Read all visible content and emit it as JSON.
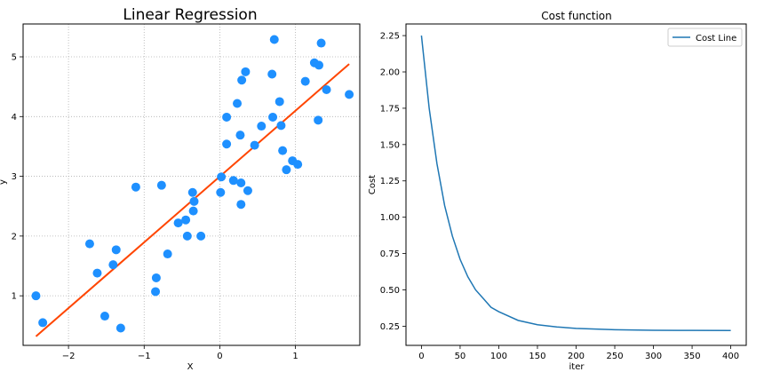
{
  "chart_data": [
    {
      "type": "scatter",
      "title": "Linear Regression",
      "xlabel": "X",
      "ylabel": "y",
      "xlim": [
        -2.6,
        1.85
      ],
      "ylim": [
        0.17,
        5.55
      ],
      "xticks": [
        -2,
        -1,
        0,
        1
      ],
      "yticks": [
        1,
        2,
        3,
        4,
        5
      ],
      "grid": true,
      "colors": {
        "points": "#1e90ff",
        "line": "#ff4500"
      },
      "points": [
        [
          -2.43,
          1.0
        ],
        [
          -2.34,
          0.55
        ],
        [
          -1.72,
          1.87
        ],
        [
          -1.62,
          1.38
        ],
        [
          -1.52,
          0.66
        ],
        [
          -1.41,
          1.52
        ],
        [
          -1.37,
          1.77
        ],
        [
          -1.31,
          0.46
        ],
        [
          -1.11,
          2.82
        ],
        [
          -0.85,
          1.07
        ],
        [
          -0.84,
          1.3
        ],
        [
          -0.77,
          2.85
        ],
        [
          -0.69,
          1.7
        ],
        [
          -0.55,
          2.22
        ],
        [
          -0.45,
          2.27
        ],
        [
          -0.43,
          2.0
        ],
        [
          -0.36,
          2.73
        ],
        [
          -0.35,
          2.42
        ],
        [
          -0.34,
          2.58
        ],
        [
          -0.25,
          2.0
        ],
        [
          0.01,
          2.73
        ],
        [
          0.02,
          2.99
        ],
        [
          0.09,
          3.54
        ],
        [
          0.09,
          3.99
        ],
        [
          0.18,
          2.93
        ],
        [
          0.23,
          4.22
        ],
        [
          0.27,
          3.69
        ],
        [
          0.28,
          2.89
        ],
        [
          0.28,
          2.53
        ],
        [
          0.29,
          4.61
        ],
        [
          0.34,
          4.75
        ],
        [
          0.37,
          2.76
        ],
        [
          0.46,
          3.52
        ],
        [
          0.55,
          3.84
        ],
        [
          0.69,
          4.71
        ],
        [
          0.7,
          3.99
        ],
        [
          0.72,
          5.29
        ],
        [
          0.79,
          4.25
        ],
        [
          0.81,
          3.85
        ],
        [
          0.83,
          3.43
        ],
        [
          0.88,
          3.11
        ],
        [
          0.96,
          3.26
        ],
        [
          1.03,
          3.2
        ],
        [
          1.13,
          4.59
        ],
        [
          1.25,
          4.9
        ],
        [
          1.3,
          3.94
        ],
        [
          1.31,
          4.86
        ],
        [
          1.34,
          5.23
        ],
        [
          1.41,
          4.45
        ],
        [
          1.71,
          4.37
        ]
      ],
      "line": {
        "x": [
          -2.43,
          1.71
        ],
        "y": [
          0.32,
          4.88
        ]
      }
    },
    {
      "type": "line",
      "title": "Cost function",
      "xlabel": "iter",
      "ylabel": "Cost",
      "xlim": [
        -20,
        420
      ],
      "ylim": [
        0.118,
        2.33
      ],
      "xticks": [
        0,
        50,
        100,
        150,
        200,
        250,
        300,
        350,
        400
      ],
      "yticks": [
        "0.25",
        "0.50",
        "0.75",
        "1.00",
        "1.25",
        "1.50",
        "1.75",
        "2.00",
        "2.25"
      ],
      "grid": false,
      "legend_position": "top-right",
      "colors": {
        "line": "#1f77b4"
      },
      "series": [
        {
          "name": "Cost Line",
          "x": [
            0,
            10,
            20,
            30,
            40,
            50,
            60,
            70,
            80,
            90,
            100,
            125,
            150,
            175,
            200,
            250,
            300,
            350,
            400
          ],
          "y": [
            2.25,
            1.75,
            1.37,
            1.08,
            0.87,
            0.71,
            0.59,
            0.5,
            0.44,
            0.38,
            0.35,
            0.29,
            0.26,
            0.245,
            0.235,
            0.226,
            0.222,
            0.221,
            0.22
          ]
        }
      ]
    }
  ]
}
